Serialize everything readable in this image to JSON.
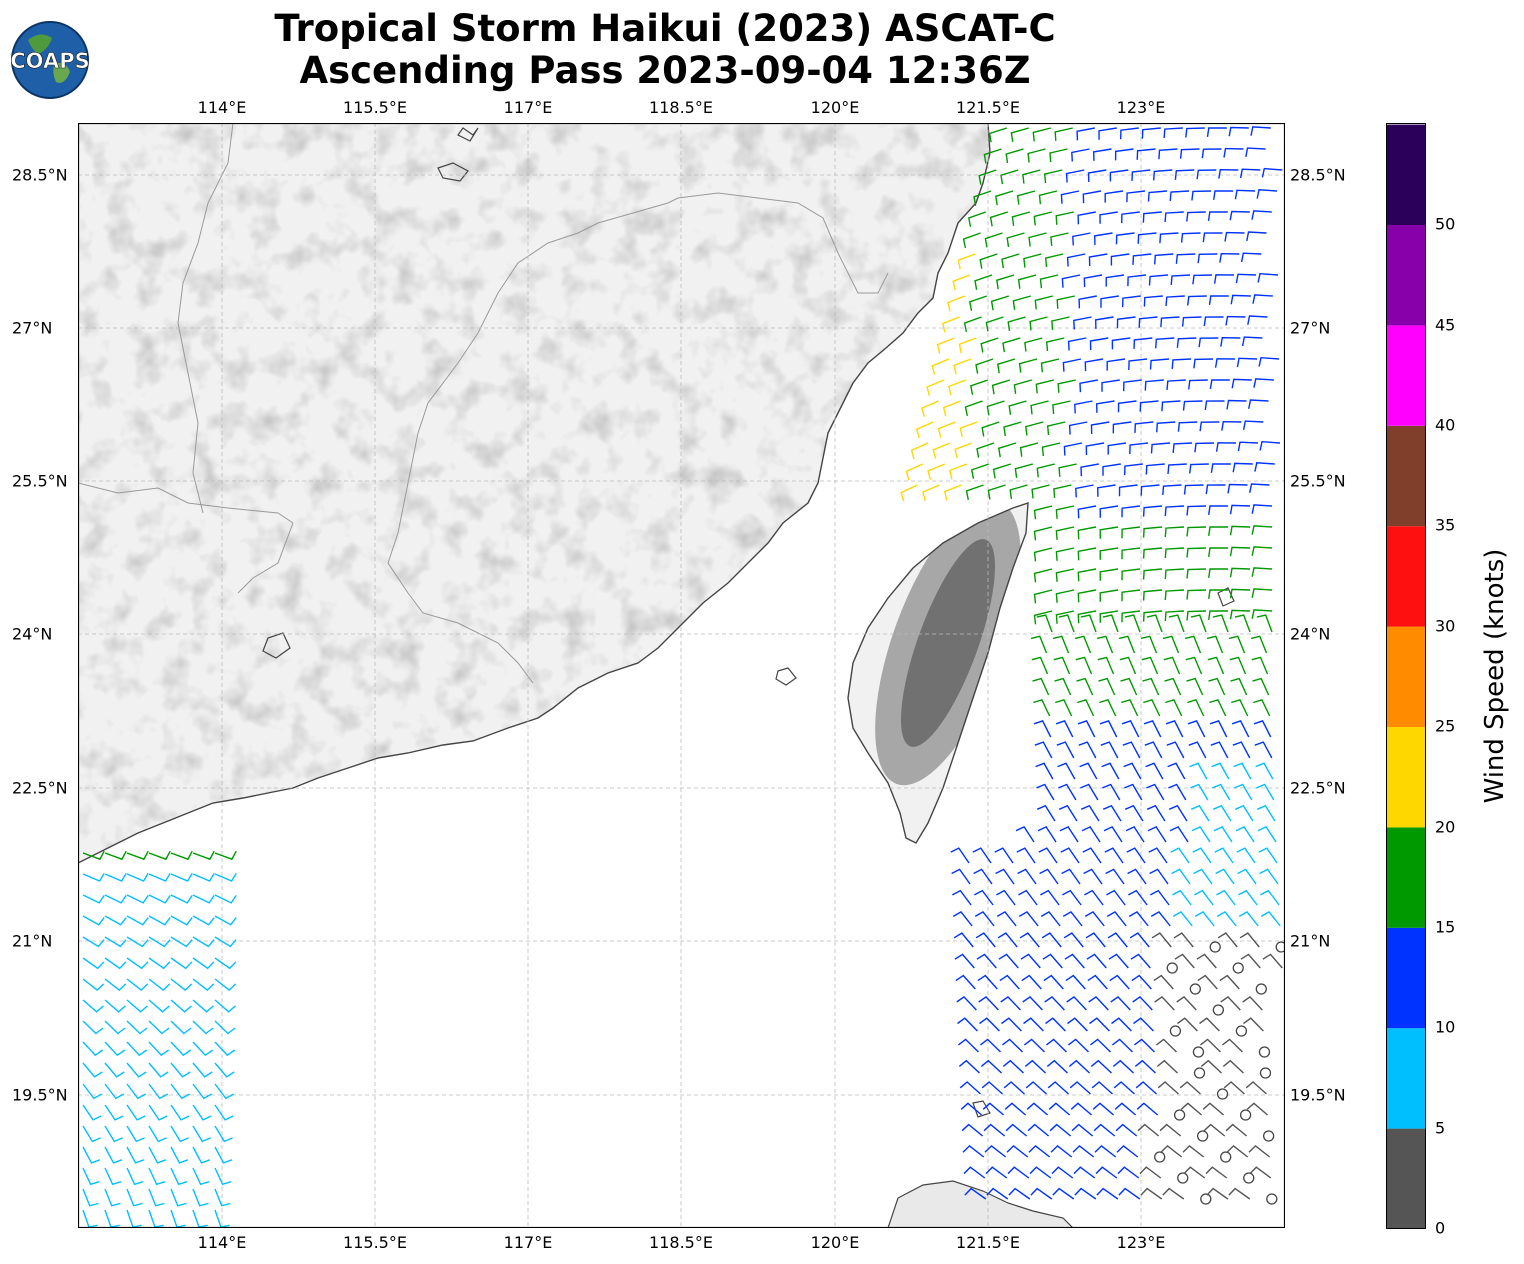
{
  "title_line1": "Tropical Storm Haikui (2023) ASCAT-C",
  "title_line2": "Ascending Pass 2023-09-04 12:36Z",
  "logo_text": "COAPS",
  "lon_ticks": [
    "114°E",
    "115.5°E",
    "117°E",
    "118.5°E",
    "120°E",
    "121.5°E",
    "123°E"
  ],
  "lat_ticks": [
    "28.5°N",
    "27°N",
    "25.5°N",
    "24°N",
    "22.5°N",
    "21°N",
    "19.5°N"
  ],
  "colorbar": {
    "label": "Wind Speed (knots)",
    "ticks": [
      "0",
      "5",
      "10",
      "15",
      "20",
      "25",
      "30",
      "35",
      "40",
      "45",
      "50"
    ],
    "colors": [
      "#555555",
      "#00bfff",
      "#0033ff",
      "#009900",
      "#ffd700",
      "#ff8c00",
      "#ff1010",
      "#7f3f2a",
      "#ff00ff",
      "#8800aa",
      "#2a005a"
    ]
  },
  "colors": {
    "land_fill": "#f1f1f1",
    "terrain_shade": "#9a9a9a",
    "coast": "#444444",
    "border": "#999999",
    "grid": "#bbbbbb"
  }
}
